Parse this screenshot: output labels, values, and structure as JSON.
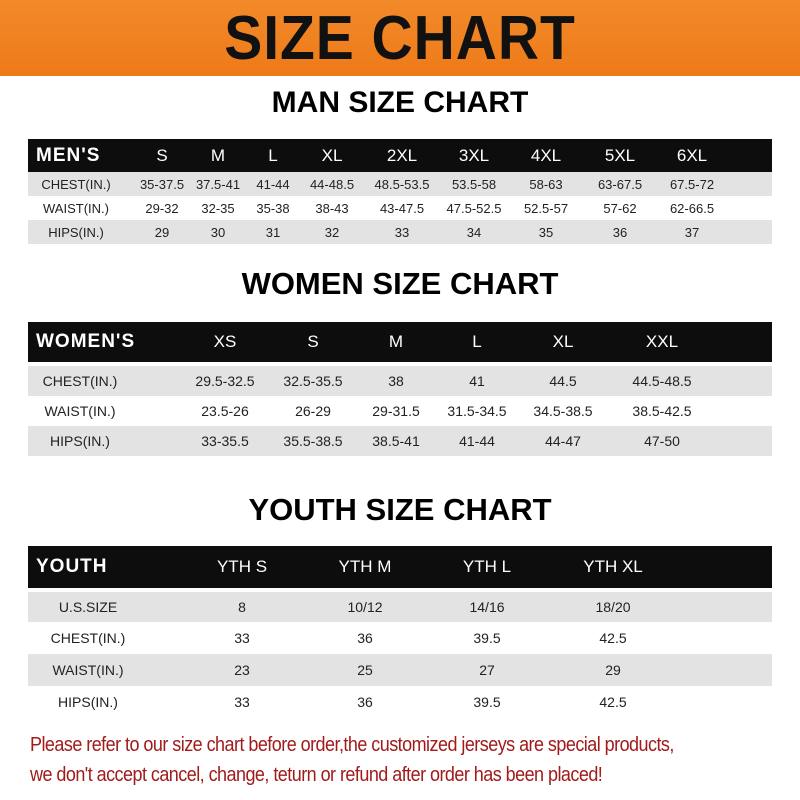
{
  "banner": {
    "title": "SIZE CHART",
    "color": "#ef7f1f"
  },
  "men": {
    "title": "MAN SIZE CHART",
    "header": [
      "MEN'S",
      "S",
      "M",
      "L",
      "XL",
      "2XL",
      "3XL",
      "4XL",
      "5XL",
      "6XL"
    ],
    "rows": [
      [
        "CHEST(IN.)",
        "35-37.5",
        "37.5-41",
        "41-44",
        "44-48.5",
        "48.5-53.5",
        "53.5-58",
        "58-63",
        "63-67.5",
        "67.5-72"
      ],
      [
        "WAIST(IN.)",
        "29-32",
        "32-35",
        "35-38",
        "38-43",
        "43-47.5",
        "47.5-52.5",
        "52.5-57",
        "57-62",
        "62-66.5"
      ],
      [
        "HIPS(IN.)",
        "29",
        "30",
        "31",
        "32",
        "33",
        "34",
        "35",
        "36",
        "37"
      ]
    ]
  },
  "women": {
    "title": "WOMEN SIZE CHART",
    "header": [
      "WOMEN'S",
      "XS",
      "S",
      "M",
      "L",
      "XL",
      "XXL"
    ],
    "rows": [
      [
        "CHEST(IN.)",
        "29.5-32.5",
        "32.5-35.5",
        "38",
        "41",
        "44.5",
        "44.5-48.5"
      ],
      [
        "WAIST(IN.)",
        "23.5-26",
        "26-29",
        "29-31.5",
        "31.5-34.5",
        "34.5-38.5",
        "38.5-42.5"
      ],
      [
        "HIPS(IN.)",
        "33-35.5",
        "35.5-38.5",
        "38.5-41",
        "41-44",
        "44-47",
        "47-50"
      ]
    ]
  },
  "youth": {
    "title": "YOUTH SIZE CHART",
    "header": [
      "YOUTH",
      "YTH S",
      "YTH M",
      "YTH L",
      "YTH XL"
    ],
    "rows": [
      [
        "U.S.SIZE",
        "8",
        "10/12",
        "14/16",
        "18/20"
      ],
      [
        "CHEST(IN.)",
        "33",
        "36",
        "39.5",
        "42.5"
      ],
      [
        "WAIST(IN.)",
        "23",
        "25",
        "27",
        "29"
      ],
      [
        "HIPS(IN.)",
        "33",
        "36",
        "39.5",
        "42.5"
      ]
    ]
  },
  "footer": {
    "line1": "Please refer to our size chart before order,the customized jerseys are special products,",
    "line2": "we don't accept cancel, change, teturn or refund after order has been placed!",
    "color": "#a11b1b"
  }
}
